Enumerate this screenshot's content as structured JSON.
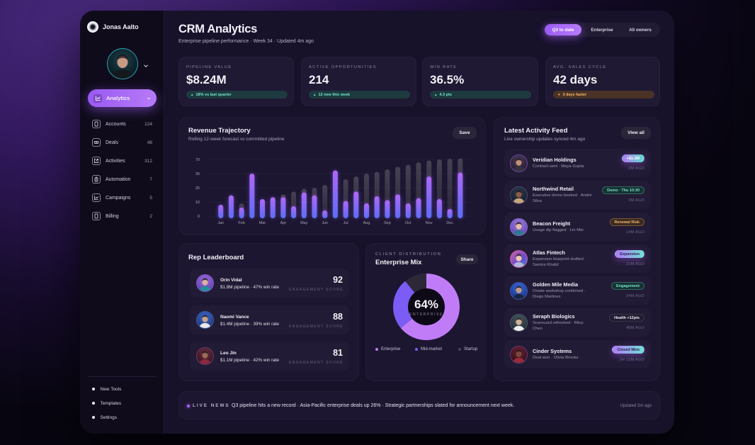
{
  "sidebar": {
    "user_name": "Jonas Aalto",
    "logo_icon": "logo-ring-icon",
    "active_nav": {
      "label": "Analytics",
      "icon": "chart-line-icon"
    },
    "items": [
      {
        "label": "Accounts",
        "count": "124",
        "icon": "tablet-icon"
      },
      {
        "label": "Deals",
        "count": "48",
        "icon": "link-icon"
      },
      {
        "label": "Activities",
        "count": "312",
        "icon": "external-link-icon"
      },
      {
        "label": "Automation",
        "count": "7",
        "icon": "clipboard-icon"
      },
      {
        "label": "Campaigns",
        "count": "5",
        "icon": "chart-line-icon"
      },
      {
        "label": "Billing",
        "count": "2",
        "icon": "tablet-icon"
      }
    ],
    "footer_items": [
      {
        "label": "New Tools"
      },
      {
        "label": "Templates"
      },
      {
        "label": "Settings"
      }
    ]
  },
  "header": {
    "title": "CRM Analytics",
    "subtitle": "Enterprise pipeline performance · Week 34 · Updated 4m ago",
    "filters": [
      {
        "label": "Q3 to date",
        "active": true
      },
      {
        "label": "Enterprise",
        "active": false
      },
      {
        "label": "All owners",
        "active": false
      }
    ]
  },
  "kpis": [
    {
      "label": "PIPELINE VALUE",
      "value": "$8.24M",
      "delta": "18% vs last quarter",
      "trend": "up",
      "tone": "positive"
    },
    {
      "label": "ACTIVE OPPORTUNITIES",
      "value": "214",
      "delta": "12 new this week",
      "trend": "up",
      "tone": "positive"
    },
    {
      "label": "WIN RATE",
      "value": "36.5%",
      "delta": "4.3 pts",
      "trend": "up",
      "tone": "positive"
    },
    {
      "label": "AVG. SALES CYCLE",
      "value": "42 days",
      "delta": "3 days faster",
      "trend": "down",
      "tone": "warning"
    }
  ],
  "revenue": {
    "save_label": "Save"
  },
  "leaderboard": {
    "title": "Rep Leaderboard",
    "reps": [
      {
        "name": "Orin Vidal",
        "detail": "$1.8M pipeline · 47% win rate",
        "score": "92",
        "score_label": "ENGAGEMENT SCORE"
      },
      {
        "name": "Naomi Vance",
        "detail": "$1.4M pipeline · 39% win rate",
        "score": "88",
        "score_label": "ENGAGEMENT SCORE"
      },
      {
        "name": "Leo Jin",
        "detail": "$1.1M pipeline · 42% win rate",
        "score": "81",
        "score_label": "ENGAGEMENT SCORE"
      }
    ]
  },
  "distribution": {
    "share_label": "Share"
  },
  "activity": {
    "title": "Latest Activity Feed",
    "subtitle": "Live ownership updates synced 4m ago",
    "view_all_label": "View all",
    "items": [
      {
        "company": "Veridian Holdings",
        "detail": "Contract sent · Maya Gupta",
        "badge": "+$1.2M",
        "badge_variant": "gradient-light",
        "time": "2M AGO"
      },
      {
        "company": "Northwind Retail",
        "detail": "Executive demo booked · André Silva",
        "badge": "Demo · Thu 10:30",
        "badge_variant": "teal",
        "time": "9M AGO"
      },
      {
        "company": "Beacon Freight",
        "detail": "Usage dip flagged · Lin Mei",
        "badge": "Renewal Risk",
        "badge_variant": "amber",
        "time": "14M AGO"
      },
      {
        "company": "Atlas Fintech",
        "detail": "Expansion blueprint drafted · Samira Khalid",
        "badge": "Expansion",
        "badge_variant": "gradient",
        "time": "21M AGO"
      },
      {
        "company": "Golden Mile Media",
        "detail": "Onsite workshop confirmed · Diego Martinez",
        "badge": "Engagement",
        "badge_variant": "teal",
        "time": "34M AGO"
      },
      {
        "company": "Seraph Biologics",
        "detail": "Scorecard refreshed · Riley Chen",
        "badge": "Health +12pts",
        "badge_variant": "neutral",
        "time": "48M AGO"
      },
      {
        "company": "Cinder Systems",
        "detail": "Deal won · Olivia Brooks",
        "badge": "Closed Won",
        "badge_variant": "gradient",
        "time": "1H 12M AGO"
      }
    ]
  },
  "news": {
    "label": "LIVE NEWS",
    "text": "Q3 pipeline hits a new record · Asia-Pacific enterprise deals up 26% · Strategic partnerships slated for announcement next week.",
    "updated": "Updated 2m ago"
  },
  "colors": {
    "accent": "#a463f7",
    "accent_blue": "#5a6ef7",
    "positive": "#74e6c9",
    "warning": "#f6b56c",
    "panel": "#1c1631",
    "background": "#17112a"
  },
  "chart_data": [
    {
      "type": "bar",
      "title": "Revenue Trajectory",
      "subtitle": "Rolling 12-week forecast vs committed pipeline",
      "bar_count": 24,
      "x_tick_labels": [
        "Jan",
        "Feb",
        "Mar",
        "Apr",
        "May",
        "Jun",
        "Jul",
        "Aug",
        "Sep",
        "Oct",
        "Nov",
        "Dec"
      ],
      "x_tick_every": 2,
      "y_ticks": [
        0,
        10,
        25,
        30,
        70
      ],
      "y_tick_spacing": "even",
      "xlabel": "",
      "ylabel": "",
      "grid": true,
      "legend": "none",
      "series": [
        {
          "name": "Committed pipeline",
          "color": "#a463f7",
          "values": [
            8,
            17,
            6,
            30,
            13,
            15,
            15,
            7,
            20,
            17,
            4,
            39,
            11,
            21,
            9,
            16,
            12,
            18,
            9,
            14,
            29,
            13,
            5,
            33
          ]
        },
        {
          "name": "Forecast",
          "color": "#3d3849",
          "values": [
            8,
            17,
            9,
            30,
            13,
            15,
            18,
            21,
            24,
            25,
            26,
            39,
            28,
            29,
            30,
            35,
            42,
            49,
            55,
            62,
            67,
            70,
            72,
            73
          ]
        }
      ]
    },
    {
      "type": "pie",
      "variant": "donut",
      "eyebrow": "CLIENT DISTRIBUTION",
      "title": "Enterprise Mix",
      "center_value": "64%",
      "center_label": "ENTERPRISE",
      "legend": "bottom",
      "slices": [
        {
          "label": "Enterprise",
          "value": 64,
          "color": "#c07cf7"
        },
        {
          "label": "Mid-market",
          "value": 25,
          "color": "#7b5df5"
        },
        {
          "label": "Startup",
          "value": 11,
          "color": "#2c2838"
        }
      ]
    }
  ]
}
